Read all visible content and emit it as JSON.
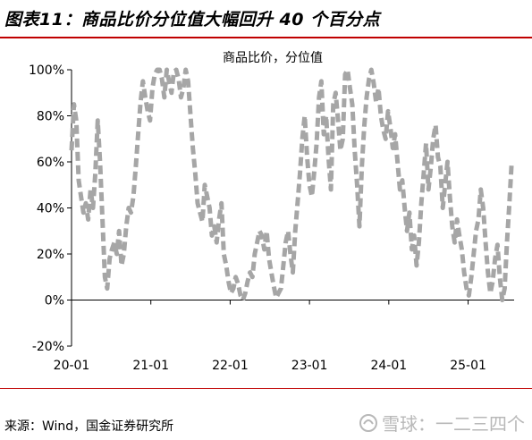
{
  "figure": {
    "title": "图表11：商品比价分位值大幅回升 40 个百分点",
    "source": "来源：Wind，国金证券研究所",
    "watermark": "雪球：一二三四个"
  },
  "chart_data": {
    "type": "line",
    "title": "商品比价，分位值",
    "xlabel": "",
    "ylabel": "",
    "ylim": [
      -20,
      100
    ],
    "yticks": [
      -20,
      0,
      20,
      40,
      60,
      80,
      100
    ],
    "ytick_labels": [
      "-20%",
      "0%",
      "20%",
      "40%",
      "60%",
      "80%",
      "100%"
    ],
    "xlim": [
      2020.0,
      2025.58
    ],
    "xticks": [
      2020.0,
      2021.0,
      2022.0,
      2023.0,
      2024.0,
      2025.0
    ],
    "xtick_labels": [
      "20-01",
      "21-01",
      "22-01",
      "23-01",
      "24-01",
      "25-01"
    ],
    "grid": false,
    "legend": "none",
    "line_style": "dashed",
    "color": "#a6a6a6",
    "series": [
      {
        "name": "商品比价，分位值",
        "x": [
          2020.0,
          2020.03,
          2020.06,
          2020.09,
          2020.12,
          2020.15,
          2020.18,
          2020.21,
          2020.24,
          2020.27,
          2020.3,
          2020.33,
          2020.36,
          2020.39,
          2020.42,
          2020.45,
          2020.48,
          2020.51,
          2020.54,
          2020.57,
          2020.6,
          2020.63,
          2020.66,
          2020.69,
          2020.72,
          2020.75,
          2020.78,
          2020.81,
          2020.84,
          2020.87,
          2020.9,
          2020.93,
          2020.96,
          2020.99,
          2021.02,
          2021.05,
          2021.08,
          2021.11,
          2021.14,
          2021.17,
          2021.2,
          2021.23,
          2021.26,
          2021.29,
          2021.32,
          2021.35,
          2021.38,
          2021.41,
          2021.44,
          2021.47,
          2021.5,
          2021.53,
          2021.56,
          2021.59,
          2021.62,
          2021.65,
          2021.68,
          2021.71,
          2021.74,
          2021.77,
          2021.8,
          2021.83,
          2021.86,
          2021.89,
          2021.92,
          2021.95,
          2021.98,
          2022.01,
          2022.04,
          2022.07,
          2022.1,
          2022.13,
          2022.16,
          2022.19,
          2022.22,
          2022.25,
          2022.28,
          2022.31,
          2022.34,
          2022.37,
          2022.4,
          2022.43,
          2022.46,
          2022.49,
          2022.52,
          2022.55,
          2022.58,
          2022.61,
          2022.64,
          2022.67,
          2022.7,
          2022.73,
          2022.76,
          2022.79,
          2022.82,
          2022.85,
          2022.88,
          2022.91,
          2022.94,
          2022.97,
          2023.0,
          2023.03,
          2023.06,
          2023.09,
          2023.12,
          2023.15,
          2023.18,
          2023.21,
          2023.24,
          2023.27,
          2023.3,
          2023.33,
          2023.36,
          2023.39,
          2023.42,
          2023.45,
          2023.48,
          2023.51,
          2023.54,
          2023.57,
          2023.6,
          2023.63,
          2023.66,
          2023.69,
          2023.72,
          2023.75,
          2023.78,
          2023.81,
          2023.84,
          2023.87,
          2023.9,
          2023.93,
          2023.96,
          2023.99,
          2024.02,
          2024.05,
          2024.08,
          2024.11,
          2024.14,
          2024.17,
          2024.2,
          2024.23,
          2024.26,
          2024.29,
          2024.32,
          2024.35,
          2024.38,
          2024.41,
          2024.44,
          2024.47,
          2024.5,
          2024.53,
          2024.56,
          2024.59,
          2024.62,
          2024.65,
          2024.68,
          2024.71,
          2024.74,
          2024.77,
          2024.8,
          2024.83,
          2024.86,
          2024.89,
          2024.92,
          2024.95,
          2024.98,
          2025.01,
          2025.04,
          2025.07,
          2025.1,
          2025.13,
          2025.16,
          2025.19,
          2025.22,
          2025.25,
          2025.28,
          2025.31,
          2025.34,
          2025.37,
          2025.4,
          2025.43,
          2025.46,
          2025.49,
          2025.52,
          2025.55
        ],
        "y": [
          65,
          85,
          78,
          52,
          45,
          38,
          42,
          35,
          48,
          40,
          55,
          78,
          60,
          35,
          10,
          5,
          18,
          22,
          25,
          20,
          30,
          15,
          20,
          32,
          40,
          38,
          45,
          58,
          72,
          86,
          95,
          88,
          82,
          78,
          92,
          98,
          100,
          100,
          96,
          88,
          100,
          95,
          90,
          99,
          100,
          96,
          88,
          92,
          100,
          95,
          80,
          66,
          55,
          42,
          38,
          34,
          50,
          45,
          40,
          28,
          32,
          25,
          35,
          42,
          20,
          15,
          8,
          3,
          5,
          10,
          7,
          2,
          0,
          3,
          8,
          12,
          10,
          20,
          25,
          30,
          28,
          22,
          30,
          18,
          12,
          6,
          1,
          3,
          5,
          15,
          25,
          30,
          20,
          12,
          30,
          42,
          55,
          70,
          80,
          62,
          50,
          45,
          56,
          68,
          88,
          95,
          72,
          80,
          62,
          48,
          85,
          90,
          78,
          65,
          70,
          98,
          100,
          92,
          85,
          65,
          50,
          32,
          58,
          75,
          88,
          96,
          100,
          94,
          86,
          92,
          80,
          74,
          70,
          82,
          75,
          66,
          72,
          60,
          48,
          52,
          40,
          30,
          38,
          22,
          28,
          15,
          25,
          42,
          55,
          68,
          48,
          58,
          70,
          76,
          62,
          58,
          40,
          50,
          60,
          45,
          32,
          25,
          35,
          28,
          22,
          12,
          5,
          2,
          10,
          20,
          30,
          35,
          48,
          40,
          25,
          12,
          3,
          8,
          18,
          24,
          10,
          0,
          5,
          25,
          42,
          60
        ]
      }
    ]
  }
}
